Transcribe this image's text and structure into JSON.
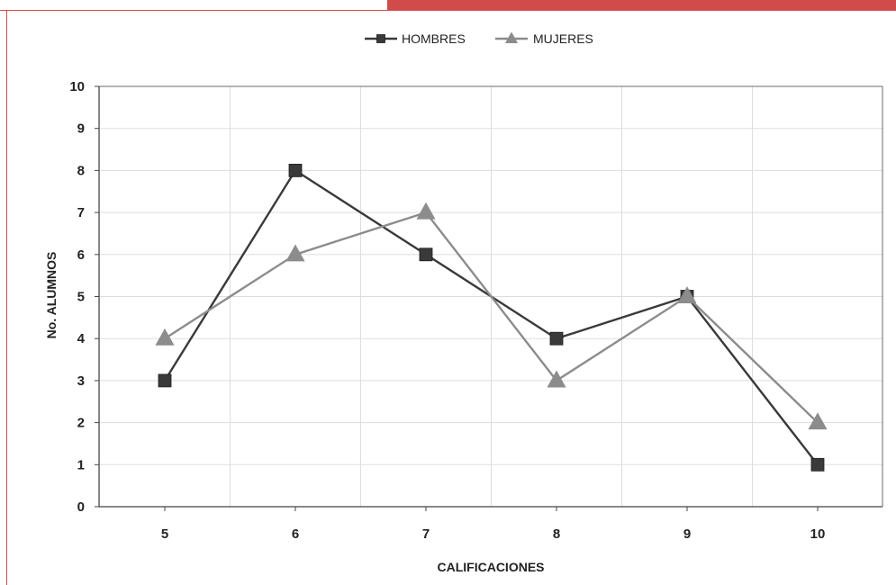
{
  "chart_data": {
    "type": "line",
    "title": "",
    "xlabel": "CALIFICACIONES",
    "ylabel": "No. ALUMNOS",
    "categories": [
      "5",
      "6",
      "7",
      "8",
      "9",
      "10"
    ],
    "ylim": [
      0,
      10
    ],
    "yticks": [
      "0",
      "1",
      "2",
      "3",
      "4",
      "5",
      "6",
      "7",
      "8",
      "9",
      "10"
    ],
    "grid": true,
    "legend_position": "top-center",
    "series": [
      {
        "name": "HOMBRES",
        "values": [
          3,
          8,
          6,
          4,
          5,
          1
        ],
        "color": "#3a3a3a",
        "marker": "square"
      },
      {
        "name": "MUJERES",
        "values": [
          4,
          6,
          7,
          3,
          5,
          2
        ],
        "color": "#8c8c8c",
        "marker": "triangle"
      }
    ]
  },
  "colors": {
    "accent": "#d14b4b",
    "grid": "#dddddd",
    "axis": "#444444"
  }
}
